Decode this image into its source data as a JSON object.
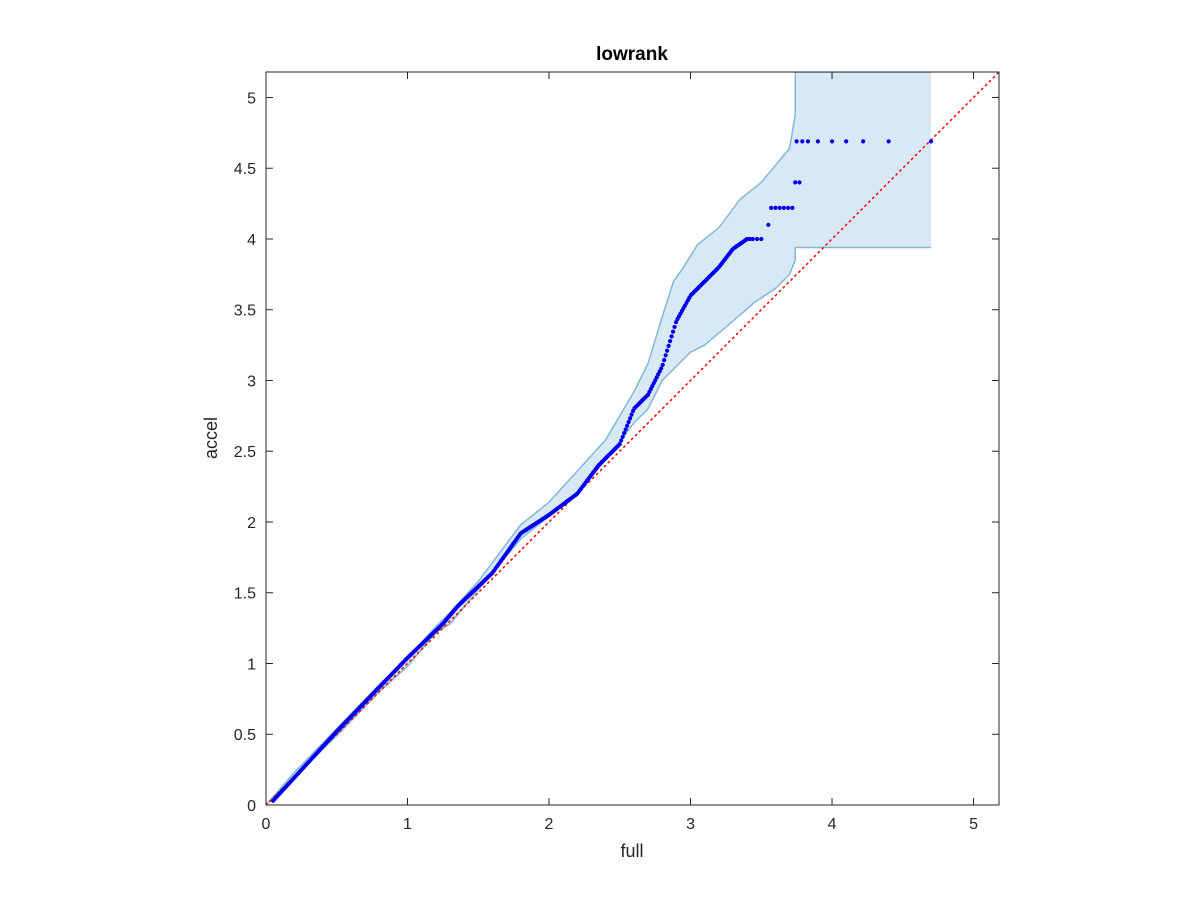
{
  "chart_data": {
    "type": "scatter",
    "title": "lowrank",
    "xlabel": "full",
    "ylabel": "accel",
    "xlim": [
      0,
      5.18
    ],
    "ylim": [
      0,
      5.18
    ],
    "xticks": [
      0,
      1,
      2,
      3,
      4,
      5
    ],
    "yticks": [
      0,
      0.5,
      1,
      1.5,
      2,
      2.5,
      3,
      3.5,
      4,
      4.5,
      5
    ],
    "xtick_labels": [
      "0",
      "1",
      "2",
      "3",
      "4",
      "5"
    ],
    "ytick_labels": [
      "0",
      "0.5",
      "1",
      "1.5",
      "2",
      "2.5",
      "3",
      "3.5",
      "4",
      "4.5",
      "5"
    ],
    "grid": false,
    "colors": {
      "points": "#0000ee",
      "reference": "#ff0000",
      "band_fill": "#d8e8f4",
      "band_edge": "#82b8d8",
      "axes": "#262626"
    },
    "reference_line": {
      "style": "dotted",
      "x": [
        0,
        5.18
      ],
      "y": [
        0,
        5.18
      ]
    },
    "confidence_band": {
      "upper": [
        [
          0,
          0
        ],
        [
          0.2,
          0.23
        ],
        [
          0.5,
          0.54
        ],
        [
          0.8,
          0.85
        ],
        [
          1.0,
          1.04
        ],
        [
          1.2,
          1.26
        ],
        [
          1.3,
          1.36
        ],
        [
          1.5,
          1.58
        ],
        [
          1.8,
          1.98
        ],
        [
          2.0,
          2.14
        ],
        [
          2.2,
          2.36
        ],
        [
          2.4,
          2.58
        ],
        [
          2.6,
          2.92
        ],
        [
          2.7,
          3.12
        ],
        [
          2.8,
          3.45
        ],
        [
          2.88,
          3.7
        ],
        [
          2.95,
          3.8
        ],
        [
          3.05,
          3.96
        ],
        [
          3.2,
          4.08
        ],
        [
          3.35,
          4.28
        ],
        [
          3.5,
          4.4
        ],
        [
          3.7,
          4.64
        ],
        [
          3.74,
          4.88
        ],
        [
          3.74,
          5.18
        ],
        [
          4.7,
          5.18
        ]
      ],
      "lower": [
        [
          0,
          0
        ],
        [
          0.2,
          0.2
        ],
        [
          0.5,
          0.49
        ],
        [
          0.8,
          0.8
        ],
        [
          1.0,
          0.98
        ],
        [
          1.2,
          1.22
        ],
        [
          1.3,
          1.28
        ],
        [
          1.5,
          1.52
        ],
        [
          1.8,
          1.88
        ],
        [
          2.0,
          2.04
        ],
        [
          2.2,
          2.2
        ],
        [
          2.4,
          2.44
        ],
        [
          2.6,
          2.7
        ],
        [
          2.7,
          2.8
        ],
        [
          2.8,
          3.0
        ],
        [
          2.9,
          3.1
        ],
        [
          3.0,
          3.2
        ],
        [
          3.1,
          3.25
        ],
        [
          3.3,
          3.42
        ],
        [
          3.45,
          3.55
        ],
        [
          3.6,
          3.65
        ],
        [
          3.7,
          3.75
        ],
        [
          3.74,
          3.85
        ],
        [
          3.74,
          3.94
        ],
        [
          4.7,
          3.94
        ]
      ]
    },
    "series": [
      {
        "curve": [
          [
            0.05,
            0.03
          ],
          [
            0.5,
            0.52
          ],
          [
            1.0,
            1.04
          ],
          [
            1.25,
            1.28
          ],
          [
            1.35,
            1.4
          ],
          [
            1.6,
            1.64
          ],
          [
            1.8,
            1.92
          ],
          [
            2.0,
            2.05
          ],
          [
            2.2,
            2.2
          ],
          [
            2.35,
            2.4
          ],
          [
            2.5,
            2.55
          ],
          [
            2.6,
            2.8
          ],
          [
            2.7,
            2.9
          ],
          [
            2.8,
            3.1
          ],
          [
            2.9,
            3.42
          ],
          [
            3.0,
            3.6
          ],
          [
            3.2,
            3.8
          ],
          [
            3.3,
            3.93
          ],
          [
            3.4,
            4.0
          ]
        ],
        "discrete": [
          {
            "y": 4.0,
            "x": [
              3.42,
              3.44,
              3.47,
              3.5
            ]
          },
          {
            "y": 4.1,
            "x": [
              3.55
            ]
          },
          {
            "y": 4.22,
            "x": [
              3.57,
              3.6,
              3.63,
              3.66,
              3.69,
              3.72
            ]
          },
          {
            "y": 4.4,
            "x": [
              3.74,
              3.77
            ]
          },
          {
            "y": 4.69,
            "x": [
              3.75,
              3.79,
              3.83,
              3.9,
              4.0,
              4.1,
              4.22,
              4.4,
              4.7
            ]
          }
        ]
      }
    ]
  }
}
